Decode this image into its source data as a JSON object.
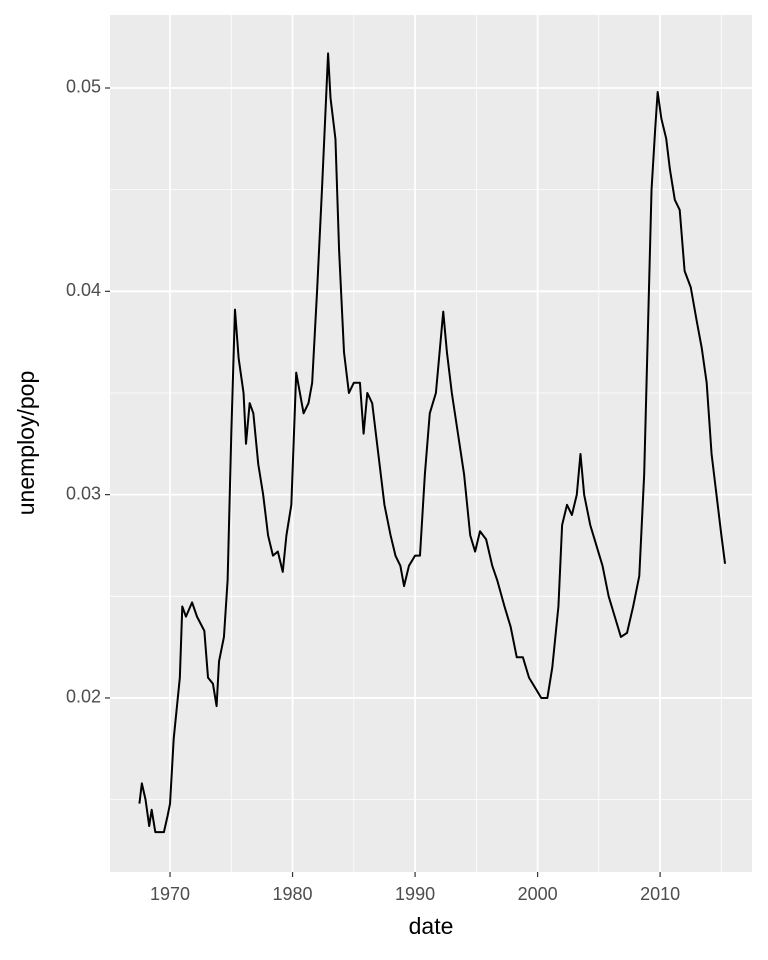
{
  "chart_data": {
    "type": "line",
    "x_label": "date",
    "y_label": "unemploy/pop",
    "xlim": [
      1965.1,
      2017.5
    ],
    "ylim": [
      0.01144,
      0.05359
    ],
    "xticks": [
      1970,
      1980,
      1990,
      2000,
      2010
    ],
    "yticks": [
      0.02,
      0.03,
      0.04,
      0.05
    ],
    "grid": true,
    "series": [
      {
        "color": "#000000",
        "x": [
          1967.5,
          1967.7,
          1968.0,
          1968.3,
          1968.5,
          1968.8,
          1969.5,
          1969.8,
          1970.0,
          1970.3,
          1970.8,
          1971.0,
          1971.3,
          1971.8,
          1972.2,
          1972.8,
          1973.1,
          1973.5,
          1973.8,
          1974.0,
          1974.4,
          1974.7,
          1975.0,
          1975.3,
          1975.6,
          1976.0,
          1976.2,
          1976.5,
          1976.8,
          1977.2,
          1977.6,
          1978.0,
          1978.4,
          1978.8,
          1979.2,
          1979.5,
          1979.9,
          1980.3,
          1980.6,
          1980.9,
          1981.3,
          1981.6,
          1982.0,
          1982.4,
          1982.7,
          1982.9,
          1983.1,
          1983.5,
          1983.8,
          1984.2,
          1984.6,
          1985.0,
          1985.5,
          1985.8,
          1986.1,
          1986.5,
          1987.0,
          1987.5,
          1988.0,
          1988.4,
          1988.8,
          1989.1,
          1989.5,
          1990.0,
          1990.4,
          1990.8,
          1991.2,
          1991.7,
          1992.0,
          1992.3,
          1992.6,
          1993.0,
          1993.5,
          1994.0,
          1994.5,
          1994.9,
          1995.3,
          1995.8,
          1996.3,
          1996.7,
          1997.3,
          1997.8,
          1998.3,
          1998.8,
          1999.3,
          1999.8,
          2000.3,
          2000.8,
          2001.2,
          2001.7,
          2002.0,
          2002.4,
          2002.8,
          2003.2,
          2003.5,
          2003.8,
          2004.3,
          2004.8,
          2005.3,
          2005.8,
          2006.3,
          2006.8,
          2007.3,
          2007.8,
          2008.3,
          2008.7,
          2009.0,
          2009.3,
          2009.6,
          2009.8,
          2010.1,
          2010.5,
          2010.8,
          2011.2,
          2011.6,
          2012.0,
          2012.5,
          2013.0,
          2013.4,
          2013.8,
          2014.2,
          2014.6,
          2015.0,
          2015.3
        ],
        "values": [
          0.0148,
          0.0158,
          0.015,
          0.0137,
          0.0145,
          0.0134,
          0.0134,
          0.0142,
          0.0148,
          0.018,
          0.021,
          0.0245,
          0.024,
          0.0247,
          0.024,
          0.0233,
          0.021,
          0.0207,
          0.0196,
          0.0218,
          0.023,
          0.0258,
          0.033,
          0.0391,
          0.0367,
          0.035,
          0.0325,
          0.0345,
          0.034,
          0.0315,
          0.03,
          0.028,
          0.027,
          0.0272,
          0.0262,
          0.028,
          0.0295,
          0.036,
          0.035,
          0.034,
          0.0345,
          0.0355,
          0.04,
          0.045,
          0.049,
          0.0517,
          0.0495,
          0.0475,
          0.042,
          0.037,
          0.035,
          0.0355,
          0.0355,
          0.033,
          0.035,
          0.0345,
          0.032,
          0.0295,
          0.028,
          0.027,
          0.0265,
          0.0255,
          0.0265,
          0.027,
          0.027,
          0.031,
          0.034,
          0.035,
          0.037,
          0.039,
          0.037,
          0.035,
          0.033,
          0.031,
          0.028,
          0.0272,
          0.0282,
          0.0278,
          0.0265,
          0.0258,
          0.0245,
          0.0235,
          0.022,
          0.022,
          0.021,
          0.0205,
          0.02,
          0.02,
          0.0215,
          0.0245,
          0.0285,
          0.0295,
          0.029,
          0.03,
          0.032,
          0.03,
          0.0285,
          0.0275,
          0.0265,
          0.025,
          0.024,
          0.023,
          0.0232,
          0.0245,
          0.026,
          0.031,
          0.038,
          0.045,
          0.048,
          0.0498,
          0.0485,
          0.0475,
          0.046,
          0.0445,
          0.044,
          0.041,
          0.0402,
          0.0385,
          0.0372,
          0.0355,
          0.032,
          0.03,
          0.028,
          0.0266
        ]
      }
    ]
  }
}
